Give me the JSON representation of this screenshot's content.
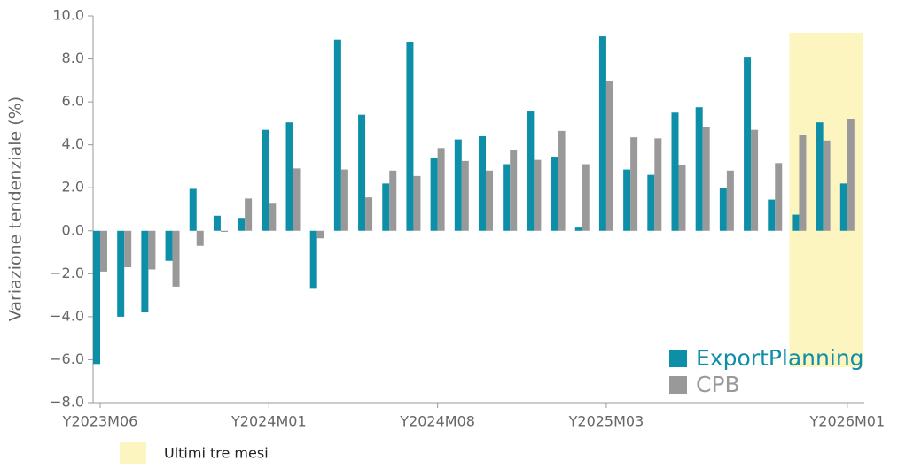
{
  "chart_data": {
    "type": "bar",
    "y_label": "Variazione tendenziale (%)",
    "categories": [
      "Y2023M06",
      null,
      null,
      null,
      null,
      null,
      null,
      "Y2024M01",
      null,
      null,
      null,
      null,
      null,
      null,
      "Y2024M08",
      null,
      null,
      null,
      null,
      null,
      null,
      "Y2025M03",
      null,
      null,
      null,
      null,
      null,
      null,
      null,
      null,
      null,
      "Y2026M01"
    ],
    "series": [
      {
        "name": "ExportPlanning",
        "color": "#0e8fa8",
        "values": [
          -6.2,
          -4.0,
          -3.8,
          -1.4,
          1.95,
          0.7,
          0.6,
          4.7,
          5.05,
          -2.7,
          8.9,
          5.4,
          2.2,
          8.8,
          3.4,
          4.25,
          4.4,
          3.1,
          5.55,
          3.45,
          0.15,
          9.05,
          2.85,
          2.6,
          5.5,
          5.75,
          2.0,
          8.1,
          1.45,
          0.75,
          5.05,
          2.2
        ]
      },
      {
        "name": "CPB",
        "color": "#999999",
        "values": [
          -1.9,
          -1.7,
          -1.8,
          -2.6,
          -0.7,
          -0.05,
          1.5,
          1.3,
          2.9,
          -0.35,
          2.85,
          1.55,
          2.8,
          2.55,
          3.85,
          3.25,
          2.8,
          3.75,
          3.3,
          4.65,
          3.1,
          6.95,
          4.35,
          4.3,
          3.05,
          4.85,
          2.8,
          4.7,
          3.15,
          4.45,
          4.2,
          5.2
        ]
      }
    ],
    "ylim": [
      -8,
      10
    ],
    "yticks": [
      {
        "value": -8,
        "label": "−8.0"
      },
      {
        "value": -6,
        "label": "−6.0"
      },
      {
        "value": -4,
        "label": "−4.0"
      },
      {
        "value": -2,
        "label": "−2.0"
      },
      {
        "value": 0,
        "label": "0.0"
      },
      {
        "value": 2,
        "label": "2.0"
      },
      {
        "value": 4,
        "label": "4.0"
      },
      {
        "value": 6,
        "label": "6.0"
      },
      {
        "value": 8,
        "label": "8.0"
      },
      {
        "value": 10,
        "label": "10.0"
      }
    ],
    "highlight": {
      "label": "Ultimi tre mesi",
      "last_n": 3,
      "color": "#fdf5c0"
    },
    "legend": "bottom-right"
  }
}
